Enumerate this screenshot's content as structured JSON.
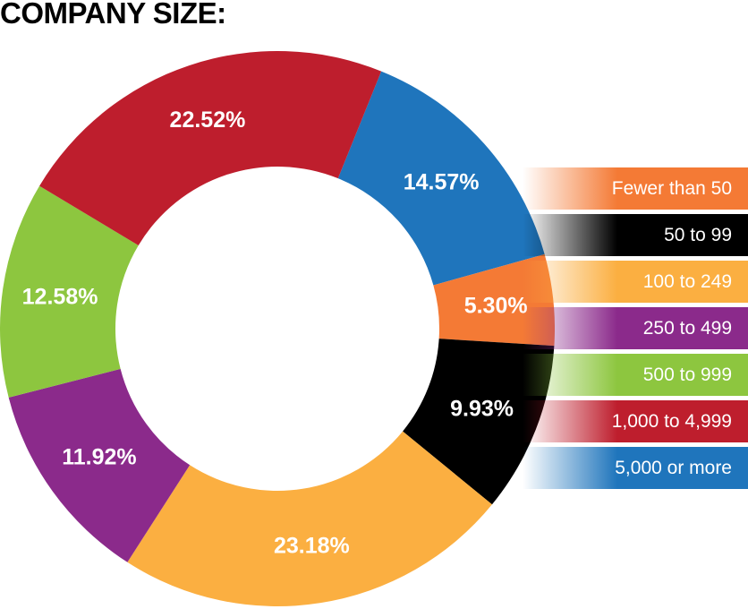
{
  "title": "COMPANY SIZE:",
  "colors": {
    "fewer_than_50": "#F47A35",
    "50_to_99": "#000000",
    "100_to_249": "#FBAF41",
    "250_to_499": "#8B2A8B",
    "500_to_999": "#8DC63F",
    "1000_to_4999": "#BE1E2D",
    "5000_or_more": "#1F75BC"
  },
  "chart_data": {
    "type": "pie",
    "donut": true,
    "title": "COMPANY SIZE:",
    "start_angle_deg": 22,
    "slices": [
      {
        "label": "5,000 or more",
        "value": 14.57,
        "display": "14.57%",
        "color": "#1F75BC"
      },
      {
        "label": "Fewer than 50",
        "value": 5.3,
        "display": "5.30%",
        "color": "#F47A35"
      },
      {
        "label": "50 to 99",
        "value": 9.93,
        "display": "9.93%",
        "color": "#000000"
      },
      {
        "label": "100 to 249",
        "value": 23.18,
        "display": "23.18%",
        "color": "#FBAF41"
      },
      {
        "label": "250 to 499",
        "value": 11.92,
        "display": "11.92%",
        "color": "#8B2A8B"
      },
      {
        "label": "500 to 999",
        "value": 12.58,
        "display": "12.58%",
        "color": "#8DC63F"
      },
      {
        "label": "1,000 to 4,999",
        "value": 22.52,
        "display": "22.52%",
        "color": "#BE1E2D"
      }
    ],
    "legend": [
      {
        "label": "Fewer than 50",
        "color": "#F47A35"
      },
      {
        "label": "50 to 99",
        "color": "#000000"
      },
      {
        "label": "100 to 249",
        "color": "#FBAF41"
      },
      {
        "label": "250 to 499",
        "color": "#8B2A8B"
      },
      {
        "label": "500 to 999",
        "color": "#8DC63F"
      },
      {
        "label": "1,000 to 4,999",
        "color": "#BE1E2D"
      },
      {
        "label": "5,000 or more",
        "color": "#1F75BC"
      }
    ],
    "legend_position": "right"
  }
}
